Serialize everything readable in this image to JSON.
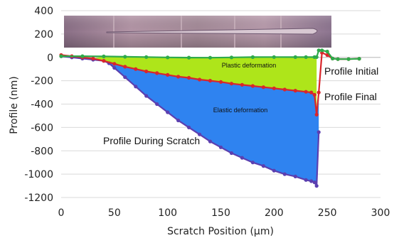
{
  "chart_data": {
    "type": "line",
    "title": "",
    "xlabel": "Scratch Position (μm)",
    "ylabel": "Profile (nm)",
    "xlim": [
      0,
      300
    ],
    "ylim": [
      -1200,
      400
    ],
    "xticks": [
      0,
      50,
      100,
      150,
      200,
      250,
      300
    ],
    "yticks": [
      400,
      200,
      0,
      -200,
      -400,
      -600,
      -800,
      -1000,
      -1200
    ],
    "grid": "horizontal",
    "legend": "none",
    "annotations": {
      "profile_initial": "Profile Initial",
      "profile_final": "Profile Final",
      "profile_during": "Profile During Scratch",
      "plastic": "Plastic deformation",
      "elastic": "Elastic deformation"
    },
    "colors": {
      "initial": "#2eaa4a",
      "final": "#d9262b",
      "during": "#5b3fb0",
      "plastic_fill": "#aee51a",
      "elastic_fill": "#2f83f0"
    },
    "series": [
      {
        "key": "initial",
        "x": [
          0,
          20,
          40,
          60,
          80,
          100,
          120,
          140,
          160,
          180,
          200,
          220,
          230,
          238,
          240,
          242,
          245,
          250,
          255,
          260,
          270,
          280
        ],
        "y": [
          10,
          10,
          8,
          5,
          3,
          0,
          -2,
          -3,
          0,
          2,
          3,
          2,
          2,
          2,
          2,
          60,
          60,
          50,
          -10,
          -15,
          -15,
          -12
        ]
      },
      {
        "key": "final",
        "x": [
          0,
          10,
          20,
          30,
          40,
          50,
          60,
          70,
          80,
          90,
          100,
          110,
          120,
          130,
          140,
          150,
          160,
          170,
          180,
          190,
          200,
          210,
          220,
          230,
          235,
          238,
          240,
          242,
          245,
          250,
          255,
          260,
          270,
          280
        ],
        "y": [
          20,
          10,
          0,
          -10,
          -30,
          -55,
          -80,
          -100,
          -120,
          -135,
          -150,
          -165,
          -175,
          -190,
          -200,
          -210,
          -225,
          -235,
          -245,
          -255,
          -265,
          -275,
          -285,
          -295,
          -300,
          -320,
          -490,
          -300,
          40,
          20,
          -10,
          -15,
          -15,
          -12
        ]
      },
      {
        "key": "during",
        "x": [
          0,
          10,
          20,
          30,
          40,
          45,
          50,
          60,
          70,
          80,
          90,
          100,
          110,
          120,
          130,
          140,
          150,
          160,
          170,
          180,
          190,
          200,
          210,
          220,
          230,
          235,
          238,
          240,
          242
        ],
        "y": [
          10,
          0,
          -10,
          -20,
          -30,
          -50,
          -90,
          -170,
          -250,
          -330,
          -400,
          -470,
          -540,
          -600,
          -660,
          -720,
          -770,
          -820,
          -860,
          -900,
          -930,
          -970,
          -1000,
          -1020,
          -1050,
          -1060,
          -1070,
          -1100,
          -640
        ]
      }
    ]
  }
}
